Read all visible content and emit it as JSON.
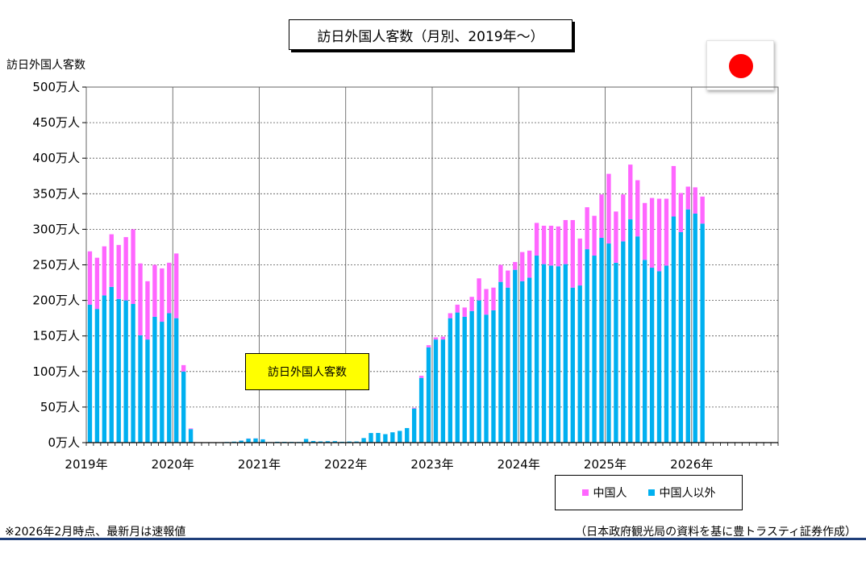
{
  "title": "訪日外国人客数（月別、2019年～）",
  "y_axis_title": "訪日外国人客数",
  "callout_label": "訪日外国人客数",
  "footnote_left": "※2026年2月時点、最新月は速報値",
  "footnote_right": "（日本政府観光局の資料を基に豊トラスティ証券作成）",
  "flag_icon": "japan-flag-icon",
  "colors": {
    "china": "#ff66ff",
    "other": "#00b0f0",
    "grid": "#555555",
    "rule": "#1f3f7a"
  },
  "chart_data": {
    "type": "bar",
    "stacked": true,
    "x_tick_labels": [
      "2019年",
      "2020年",
      "2021年",
      "2022年",
      "2023年",
      "2024年",
      "2025年",
      "2026年"
    ],
    "y_tick_labels": [
      "0万人",
      "50万人",
      "100万人",
      "150万人",
      "200万人",
      "250万人",
      "300万人",
      "350万人",
      "400万人",
      "450万人",
      "500万人"
    ],
    "ylim": [
      0,
      500
    ],
    "y_unit": "万人",
    "x_range": [
      "2019-01",
      "2026-12"
    ],
    "grid": true,
    "legend_position": "bottom-right",
    "categories": [
      "2019-01",
      "2019-02",
      "2019-03",
      "2019-04",
      "2019-05",
      "2019-06",
      "2019-07",
      "2019-08",
      "2019-09",
      "2019-10",
      "2019-11",
      "2019-12",
      "2020-01",
      "2020-02",
      "2020-03",
      "2020-04",
      "2020-05",
      "2020-06",
      "2020-07",
      "2020-08",
      "2020-09",
      "2020-10",
      "2020-11",
      "2020-12",
      "2021-01",
      "2021-02",
      "2021-03",
      "2021-04",
      "2021-05",
      "2021-06",
      "2021-07",
      "2021-08",
      "2021-09",
      "2021-10",
      "2021-11",
      "2021-12",
      "2022-01",
      "2022-02",
      "2022-03",
      "2022-04",
      "2022-05",
      "2022-06",
      "2022-07",
      "2022-08",
      "2022-09",
      "2022-10",
      "2022-11",
      "2022-12",
      "2023-01",
      "2023-02",
      "2023-03",
      "2023-04",
      "2023-05",
      "2023-06",
      "2023-07",
      "2023-08",
      "2023-09",
      "2023-10",
      "2023-11",
      "2023-12",
      "2024-01",
      "2024-02",
      "2024-03",
      "2024-04",
      "2024-05",
      "2024-06",
      "2024-07",
      "2024-08",
      "2024-09",
      "2024-10",
      "2024-11",
      "2024-12",
      "2025-01",
      "2025-02",
      "2025-03",
      "2025-04",
      "2025-05",
      "2025-06",
      "2025-07",
      "2025-08",
      "2025-09",
      "2025-10",
      "2025-11",
      "2025-12",
      "2026-01",
      "2026-02"
    ],
    "series": [
      {
        "name": "中国人以外",
        "color": "#00b0f0",
        "values": [
          194,
          188,
          207,
          219,
          202,
          200,
          195,
          151,
          145,
          177,
          170,
          182,
          175,
          100,
          19,
          0.3,
          0.2,
          0.2,
          0.4,
          0.9,
          1.4,
          2.8,
          5.6,
          5.9,
          4.6,
          0.7,
          1.2,
          1.1,
          1.0,
          0.9,
          5.2,
          2.3,
          1.7,
          2.0,
          2.1,
          1.2,
          1.6,
          1.6,
          6.4,
          13.5,
          13.6,
          11.9,
          14.5,
          16.5,
          20.5,
          48,
          91,
          134,
          145,
          145,
          175,
          183,
          177,
          185,
          200,
          180,
          186,
          226,
          218,
          243,
          227,
          232,
          263,
          251,
          249,
          248,
          251,
          218,
          221,
          272,
          263,
          288,
          280,
          253,
          283,
          314,
          290,
          257,
          246,
          241,
          249,
          318,
          296,
          328,
          322,
          308
        ]
      },
      {
        "name": "中国人",
        "color": "#ff66ff",
        "values": [
          75,
          72,
          69,
          74,
          76,
          89,
          105,
          101,
          82,
          73,
          75,
          71,
          91,
          9,
          1,
          0,
          0,
          0,
          0,
          0,
          0,
          0.1,
          0.2,
          0.1,
          0.1,
          0,
          0,
          0,
          0,
          0,
          0,
          0,
          0,
          0,
          0,
          0,
          0,
          0,
          0,
          0,
          0,
          0,
          0,
          0,
          0,
          1,
          3,
          3,
          3,
          4,
          7,
          11,
          13,
          20,
          31,
          36,
          32,
          24,
          24,
          11,
          41,
          38,
          46,
          54,
          56,
          56,
          62,
          95,
          66,
          59,
          56,
          61,
          98,
          72,
          66,
          77,
          79,
          80,
          98,
          102,
          94,
          71,
          55,
          32,
          37,
          38
        ]
      }
    ]
  }
}
